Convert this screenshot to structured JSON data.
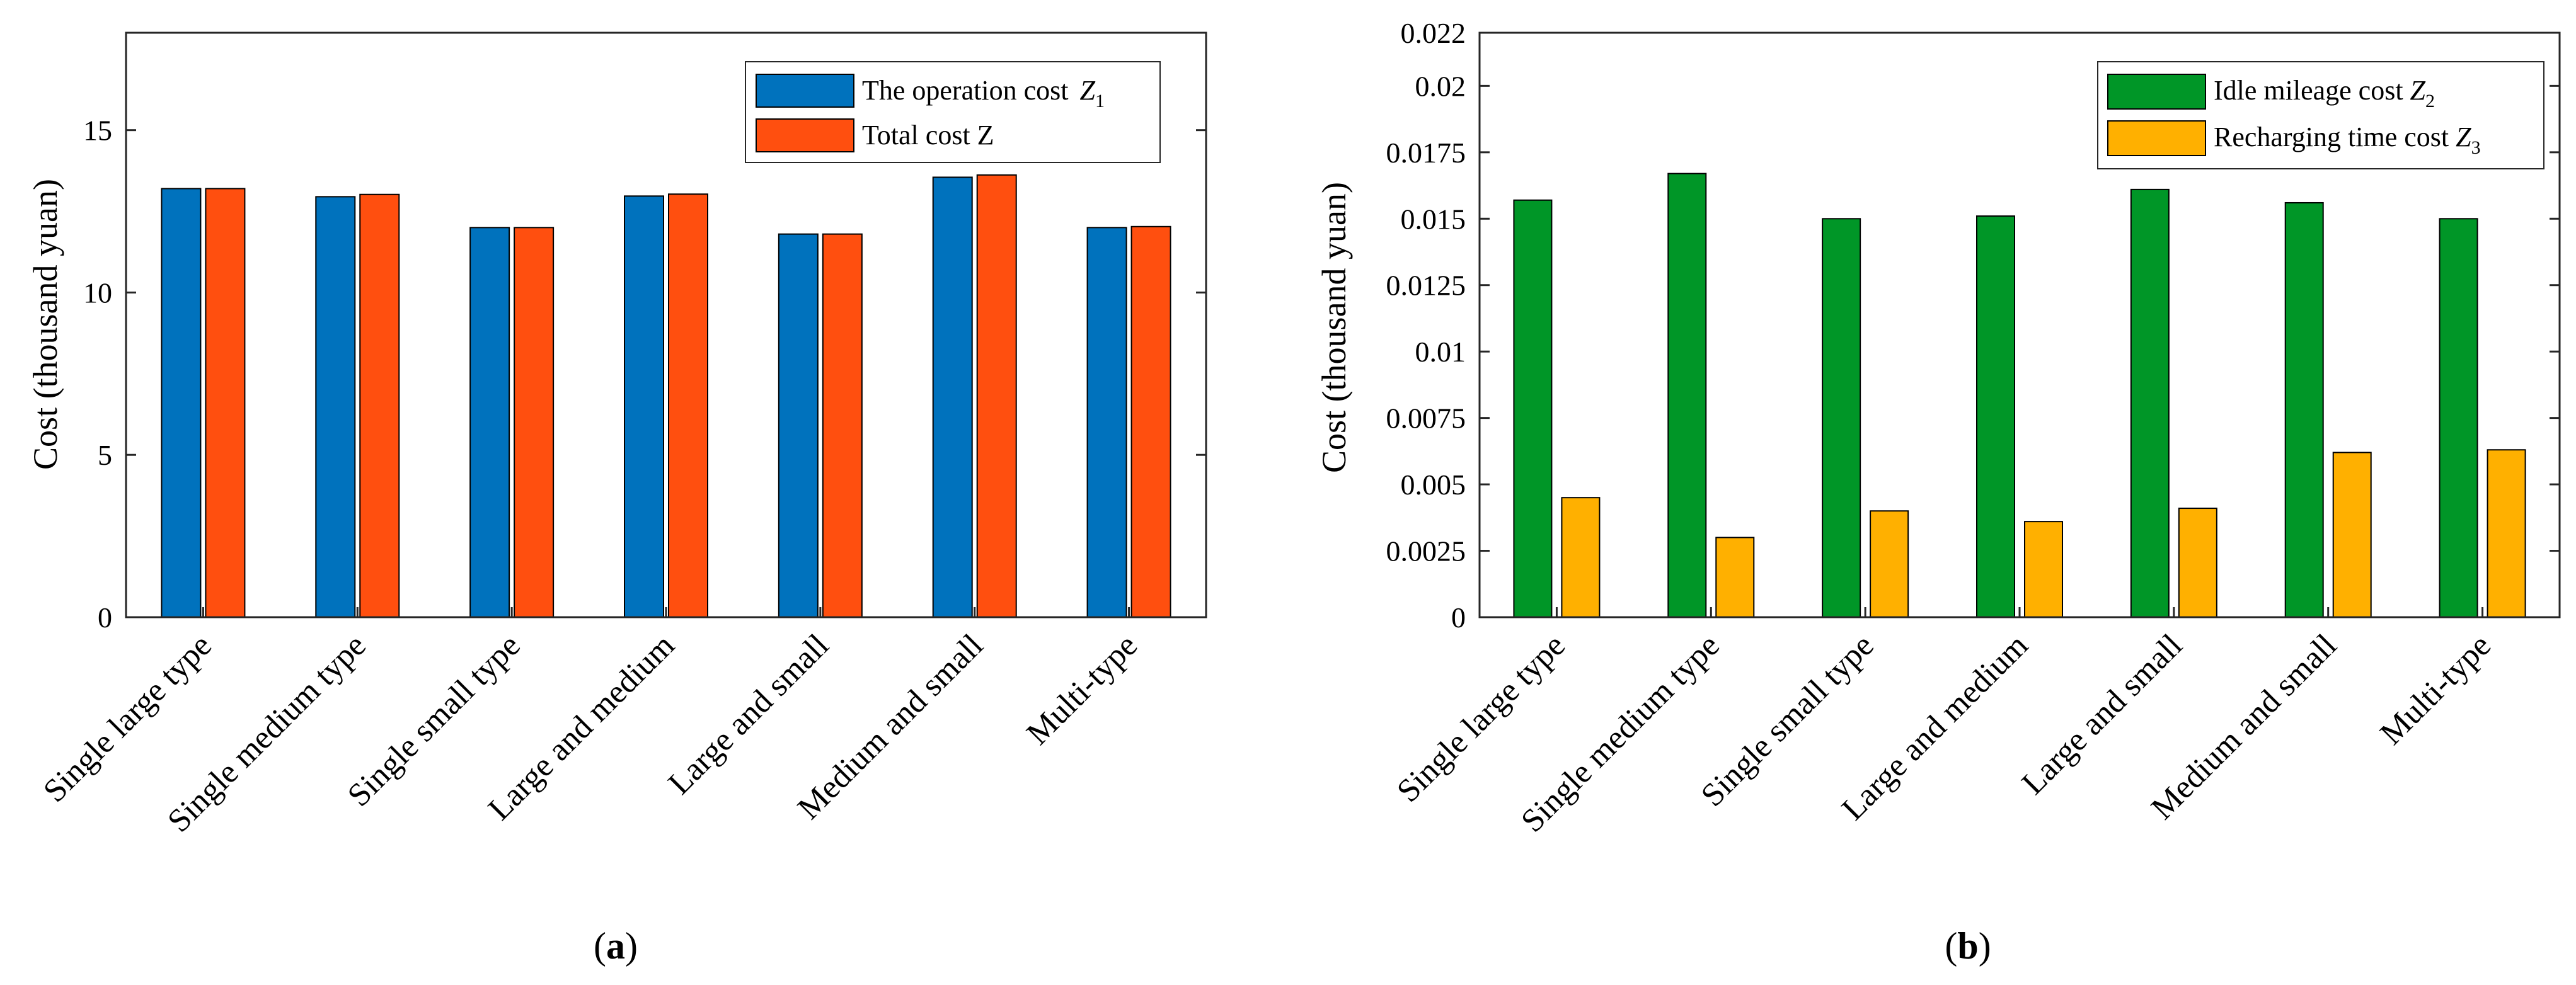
{
  "chart_data": [
    {
      "type": "bar",
      "panel": "a",
      "categories": [
        "Single large type",
        "Single medium type",
        "Single small type",
        "Large and medium",
        "Large and small",
        "Medium and small",
        "Multi-type"
      ],
      "series": [
        {
          "name": "The operation cost",
          "symbol": "Z",
          "subscript": "1",
          "color": "#0072BD",
          "values": [
            13.2,
            12.95,
            12.0,
            12.97,
            11.8,
            13.55,
            12.0
          ]
        },
        {
          "name": "Total cost",
          "symbol": "Z",
          "subscript": "",
          "color": "#FF4F0F",
          "values": [
            13.2,
            13.02,
            12.0,
            13.03,
            11.8,
            13.62,
            12.03
          ]
        }
      ],
      "title": "",
      "xlabel": "",
      "ylabel": "Cost (thousand yuan)",
      "ylim": [
        0,
        18
      ],
      "yticks": [
        "0",
        "5",
        "10",
        "15"
      ],
      "ytick_values": [
        0,
        5,
        10,
        15
      ],
      "legend": "top-right",
      "grid": false,
      "caption": "a"
    },
    {
      "type": "bar",
      "panel": "b",
      "categories": [
        "Single large type",
        "Single medium type",
        "Single small type",
        "Large and medium",
        "Large and small",
        "Medium and small",
        "Multi-type"
      ],
      "series": [
        {
          "name": "Idle mileage cost",
          "symbol": "Z",
          "subscript": "2",
          "color": "#009627",
          "values": [
            0.0157,
            0.0167,
            0.015,
            0.0151,
            0.0161,
            0.0156,
            0.015
          ]
        },
        {
          "name": "Recharging time cost",
          "symbol": "Z",
          "subscript": "3",
          "color": "#FFB000",
          "values": [
            0.0045,
            0.003,
            0.004,
            0.0036,
            0.0041,
            0.0062,
            0.0063
          ]
        }
      ],
      "title": "",
      "xlabel": "",
      "ylabel": "Cost (thousand yuan)",
      "ylim": [
        0,
        0.022
      ],
      "yticks": [
        "0",
        "0.0025",
        "0.005",
        "0.0075",
        "0.01",
        "0.0125",
        "0.015",
        "0.0175",
        "0.02",
        "0.022"
      ],
      "ytick_values": [
        0,
        0.0025,
        0.005,
        0.0075,
        0.01,
        0.0125,
        0.015,
        0.0175,
        0.02,
        0.022
      ],
      "legend": "top-right",
      "grid": false,
      "caption": "b"
    }
  ]
}
